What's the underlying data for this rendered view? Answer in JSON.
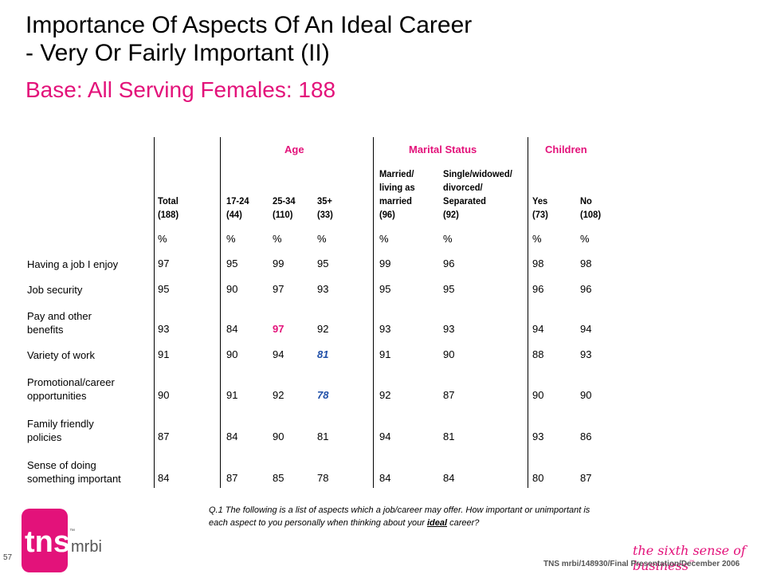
{
  "title_line1": "Importance Of Aspects Of An Ideal Career",
  "title_line2": "- Very Or Fairly Important (II)",
  "subtitle": "Base:  All Serving Females:  188",
  "groups": {
    "age": "Age",
    "marital": "Marital Status",
    "children": "Children"
  },
  "columns": [
    {
      "lines": [
        "Total",
        "(188)"
      ]
    },
    {
      "lines": [
        "17-24",
        "(44)"
      ]
    },
    {
      "lines": [
        "25-34",
        "(110)"
      ]
    },
    {
      "lines": [
        "35+",
        "(33)"
      ]
    },
    {
      "lines": [
        "Married/",
        "living as",
        "married",
        "(96)"
      ]
    },
    {
      "lines": [
        "Single/widowed/",
        "divorced/",
        "Separated",
        "(92)"
      ]
    },
    {
      "lines": [
        "Yes",
        "(73)"
      ]
    },
    {
      "lines": [
        "No",
        "(108)"
      ]
    }
  ],
  "pct_symbol": "%",
  "rows": [
    {
      "label": [
        "Having a job I enjoy"
      ],
      "values": [
        "97",
        "95",
        "99",
        "95",
        "99",
        "96",
        "98",
        "98"
      ]
    },
    {
      "label": [
        "Job security"
      ],
      "values": [
        "95",
        "90",
        "97",
        "93",
        "95",
        "95",
        "96",
        "96"
      ]
    },
    {
      "label": [
        "Pay and other",
        "benefits"
      ],
      "values": [
        "93",
        "84",
        "97",
        "92",
        "93",
        "93",
        "94",
        "94"
      ]
    },
    {
      "label": [
        "Variety of work"
      ],
      "values": [
        "91",
        "90",
        "94",
        "81",
        "91",
        "90",
        "88",
        "93"
      ]
    },
    {
      "label": [
        "Promotional/career",
        "opportunities"
      ],
      "values": [
        "90",
        "91",
        "92",
        "78",
        "92",
        "87",
        "90",
        "90"
      ]
    },
    {
      "label": [
        "Family friendly",
        "policies"
      ],
      "values": [
        "87",
        "84",
        "90",
        "81",
        "94",
        "81",
        "93",
        "86"
      ]
    },
    {
      "label": [
        "Sense of doing",
        "something important"
      ],
      "values": [
        "84",
        "87",
        "85",
        "78",
        "84",
        "84",
        "80",
        "87"
      ]
    }
  ],
  "highlights": [
    {
      "row": 2,
      "col": 2,
      "style": "pink"
    },
    {
      "row": 3,
      "col": 3,
      "style": "blue"
    },
    {
      "row": 4,
      "col": 3,
      "style": "blue"
    }
  ],
  "question": {
    "prefix": "Q.1  The following is a list of aspects which a job/career may offer. How important or unimportant  is each aspect to you personally when thinking about your ",
    "emph": "ideal",
    "suffix": " career?"
  },
  "logo": {
    "brand": "tns",
    "sub": "mrbi",
    "tm": "™"
  },
  "page_number": "57",
  "tagline": "the sixth sense of business",
  "tagline_tm": "™",
  "footer_ref": "TNS mrbi/148930/Final Presentation/December 2006",
  "colors": {
    "accent": "#e3127a",
    "highlight_low": "#1f4fa8"
  }
}
